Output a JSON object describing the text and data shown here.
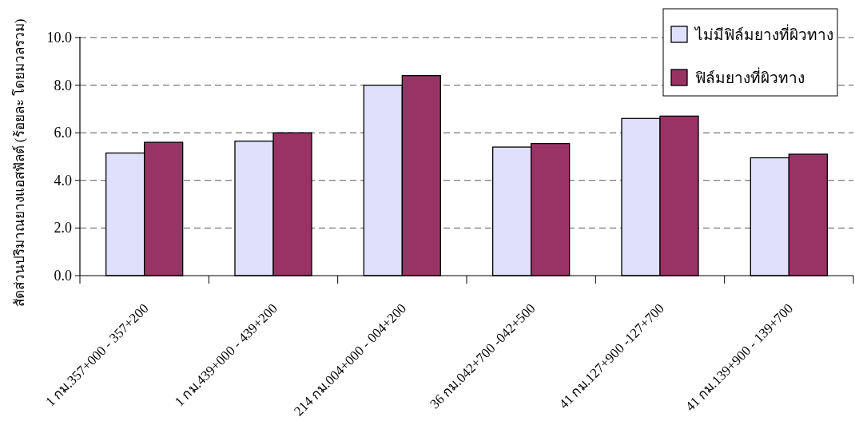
{
  "chart_data": {
    "type": "bar",
    "ylabel": "สัดส่วนปริมาณยางแอสฟัลต์ (ร้อยละ โดยมวลรวม)",
    "categories": [
      "1 กม.357+000 - 357+200",
      "1 กม.439+000 - 439+200",
      "214 กม.004+000 - 004+200",
      "36 กม.042+700 -042+500",
      "41 กม.127+900 -127+700",
      "41 กม.139+900 - 139+700"
    ],
    "series": [
      {
        "name": "ไม่มีฟิล์มยางที่ผิวทาง",
        "color": "#e0e0fc",
        "values": [
          5.15,
          5.65,
          8.0,
          5.4,
          6.6,
          4.95
        ]
      },
      {
        "name": "ฟิล์มยางที่ผิวทาง",
        "color": "#993366",
        "values": [
          5.6,
          6.0,
          8.4,
          5.55,
          6.7,
          5.1
        ]
      }
    ],
    "ylim": [
      0,
      10
    ],
    "yticks": [
      {
        "value": 0,
        "label": "0.0"
      },
      {
        "value": 2,
        "label": "2.0"
      },
      {
        "value": 4,
        "label": "4.0"
      },
      {
        "value": 6,
        "label": "6.0"
      },
      {
        "value": 8,
        "label": "8.0"
      },
      {
        "value": 10,
        "label": "10.0"
      }
    ],
    "grid": "y",
    "legend": "top right"
  }
}
